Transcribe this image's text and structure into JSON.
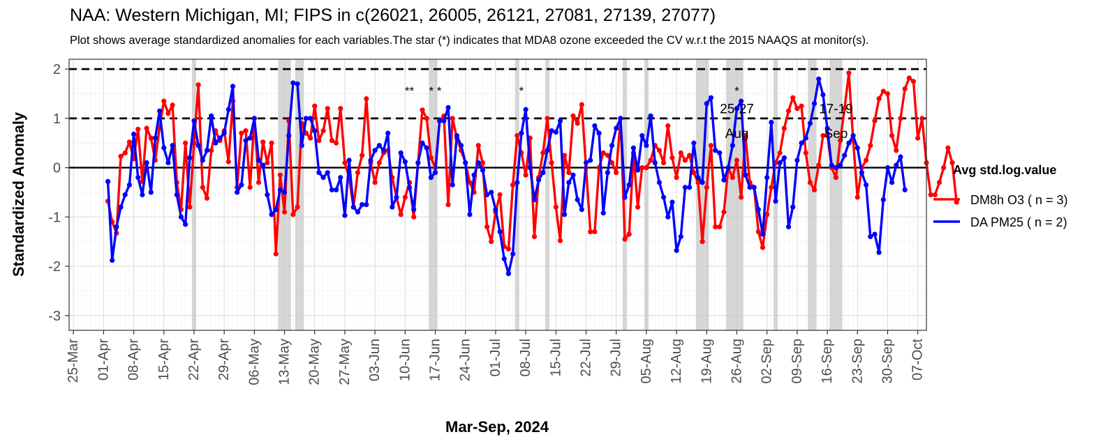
{
  "chart_data": {
    "type": "line",
    "title": "NAA: Western Michigan, MI; FIPS in c(26021, 26005, 26121, 27081, 27139, 27077)",
    "subtitle": "Plot shows average standardized anomalies for each variables.The star (*) indicates that MDA8 ozone exceeded the CV w.r.t the 2015 NAAQS at monitor(s).",
    "xlabel": "Mar-Sep, 2024",
    "ylabel": "Standardized Anomaly",
    "x_start_date": "2024-04-02",
    "xlim": [
      "2024-03-24",
      "2024-10-09"
    ],
    "ylim": [
      -3.3,
      2.2
    ],
    "x_ticks": [
      "25-Mar",
      "01-Apr",
      "08-Apr",
      "15-Apr",
      "22-Apr",
      "29-Apr",
      "06-May",
      "13-May",
      "20-May",
      "27-May",
      "03-Jun",
      "10-Jun",
      "17-Jun",
      "24-Jun",
      "01-Jul",
      "08-Jul",
      "15-Jul",
      "22-Jul",
      "29-Jul",
      "05-Aug",
      "12-Aug",
      "19-Aug",
      "26-Aug",
      "02-Sep",
      "09-Sep",
      "16-Sep",
      "23-Sep",
      "30-Sep",
      "07-Oct"
    ],
    "y_ticks": [
      "-3",
      "-2",
      "-1",
      "0",
      "1",
      "2"
    ],
    "grid": true,
    "legend": {
      "title": "Avg std.log.value",
      "position": "right"
    },
    "reference_lines": [
      {
        "y": 2,
        "style": "dashed"
      },
      {
        "y": 1,
        "style": "dashed"
      },
      {
        "y": 0,
        "style": "solid"
      }
    ],
    "shaded_days": [
      "2024-04-22",
      "2024-05-12",
      "2024-05-13",
      "2024-05-14",
      "2024-05-16",
      "2024-05-17",
      "2024-06-16",
      "2024-06-17",
      "2024-07-06",
      "2024-07-13",
      "2024-07-31",
      "2024-08-05",
      "2024-08-17",
      "2024-08-18",
      "2024-08-19",
      "2024-08-24",
      "2024-08-25",
      "2024-08-26",
      "2024-08-27",
      "2024-09-04",
      "2024-09-12",
      "2024-09-13",
      "2024-09-17",
      "2024-09-18",
      "2024-09-19"
    ],
    "stars": [
      {
        "date": "2024-06-11",
        "label": "**"
      },
      {
        "date": "2024-06-17",
        "label": "* *"
      },
      {
        "date": "2024-07-07",
        "label": "*"
      },
      {
        "date": "2024-08-26",
        "label": "*"
      }
    ],
    "annotations": [
      {
        "date": "2024-08-26",
        "lines": [
          "25-27",
          "Aug"
        ],
        "y": [
          1.2,
          0.7
        ]
      },
      {
        "date": "2024-09-18",
        "lines": [
          "17-19",
          "Sep"
        ],
        "y": [
          1.2,
          0.7
        ]
      }
    ],
    "series": [
      {
        "name": "DM8h O3 ( n = 3)",
        "color": "#ff0000",
        "values": [
          -0.68,
          -1.1,
          -1.33,
          0.23,
          0.3,
          0.52,
          0.18,
          0.78,
          -0.28,
          0.8,
          0.6,
          0.15,
          0.82,
          1.35,
          1.1,
          1.27,
          -0.3,
          -0.85,
          0.5,
          -0.8,
          0.5,
          1.68,
          -0.4,
          -0.62,
          0.35,
          0.75,
          0.55,
          0.75,
          0.12,
          1.35,
          -0.4,
          0.7,
          0.75,
          -0.4,
          1.0,
          -0.3,
          0.52,
          0.1,
          0.5,
          -1.75,
          -0.15,
          -0.9,
          0.95,
          -0.95,
          -0.8,
          0.9,
          0.7,
          0.6,
          1.25,
          0.55,
          0.75,
          1.2,
          0.55,
          0.5,
          1.2,
          0.1,
          -0.2,
          -0.8,
          -0.1,
          0.25,
          1.4,
          0.1,
          -0.3,
          0.1,
          0.3,
          0.35,
          -0.2,
          -0.6,
          -0.95,
          -0.6,
          -0.3,
          -1.0,
          0.1,
          1.17,
          1.0,
          0.2,
          0.0,
          0.95,
          1.05,
          -0.75,
          1.0,
          0.6,
          0.35,
          0.1,
          -0.3,
          -0.5,
          0.45,
          0.1,
          -1.2,
          -1.5,
          -0.9,
          -0.55,
          -1.6,
          -1.65,
          -0.35,
          0.65,
          0.3,
          -0.15,
          0.6,
          -1.4,
          -0.2,
          0.3,
          1.0,
          0.1,
          -0.8,
          -1.48,
          0.25,
          -0.1,
          1.05,
          0.9,
          1.28,
          0.0,
          -1.3,
          -1.3,
          0.0,
          0.3,
          0.25,
          0.1,
          -0.1,
          1.0,
          -1.45,
          -1.35,
          0.3,
          -0.8,
          0.0,
          0.0,
          0.15,
          0.45,
          0.35,
          0.1,
          0.85,
          0.2,
          -0.2,
          0.3,
          0.15,
          0.25,
          -0.1,
          -0.3,
          -1.5,
          -0.4,
          0.45,
          -1.2,
          -1.2,
          -0.9,
          0.0,
          -0.2,
          0.15,
          -0.6,
          0.65,
          -0.3,
          -0.4,
          -1.3,
          -1.62,
          -0.95,
          -0.4,
          0.1,
          0.3,
          0.8,
          1.15,
          1.42,
          1.2,
          1.25,
          0.3,
          -0.3,
          -0.45,
          0.05,
          0.65,
          0.68,
          0.0,
          -0.2,
          0.55,
          1.2,
          1.92,
          0.55,
          -0.6,
          0.0,
          0.15,
          0.45,
          0.95,
          1.4,
          1.55,
          1.5,
          0.65,
          0.35,
          1.0,
          1.6,
          1.82,
          1.75,
          0.6,
          1.0,
          0.1,
          -0.55,
          -0.55,
          -0.3,
          0.0,
          0.4,
          0.1,
          -0.7
        ]
      },
      {
        "name": "DA PM25 ( n = 2)",
        "color": "#0000ff",
        "values": [
          -0.28,
          -1.88,
          -1.2,
          -0.8,
          -0.55,
          -0.35,
          0.68,
          -0.2,
          -0.55,
          0.1,
          -0.5,
          0.6,
          1.15,
          0.4,
          0.1,
          0.45,
          -0.55,
          -1.0,
          -1.15,
          0.2,
          0.95,
          0.45,
          0.15,
          0.35,
          1.05,
          0.5,
          0.6,
          0.7,
          1.18,
          1.65,
          -0.5,
          -0.35,
          0.55,
          0.6,
          1.0,
          0.15,
          0.05,
          -0.55,
          -0.95,
          -0.85,
          -0.45,
          -0.5,
          0.65,
          1.72,
          1.7,
          0.45,
          1.0,
          1.0,
          0.75,
          -0.1,
          -0.2,
          -0.1,
          -0.45,
          -0.45,
          -0.2,
          -0.97,
          0.15,
          -0.8,
          -0.9,
          -0.75,
          -0.75,
          0.15,
          0.35,
          0.45,
          0.35,
          0.7,
          -0.8,
          -0.6,
          0.3,
          0.12,
          -0.4,
          -0.85,
          0.1,
          0.5,
          0.4,
          -0.2,
          -0.1,
          0.95,
          0.95,
          1.22,
          -0.35,
          0.65,
          0.45,
          0.1,
          -0.95,
          -0.15,
          0.1,
          -0.05,
          -0.55,
          -0.5,
          -0.85,
          -1.3,
          -1.85,
          -2.15,
          -1.75,
          -0.3,
          0.7,
          1.18,
          0.0,
          -0.65,
          -0.25,
          -0.1,
          0.35,
          0.75,
          0.72,
          0.95,
          -0.95,
          -0.3,
          -0.15,
          -0.65,
          -0.85,
          0.1,
          0.15,
          0.85,
          0.7,
          -0.92,
          -0.1,
          0.45,
          0.8,
          1.0,
          -0.6,
          -0.35,
          0.4,
          -0.05,
          0.65,
          0.45,
          1.05,
          0.1,
          -0.3,
          -0.6,
          -1.0,
          -0.7,
          -1.68,
          -1.4,
          -0.4,
          -0.4,
          0.5,
          -0.2,
          -0.3,
          1.3,
          1.42,
          0.35,
          0.3,
          -0.25,
          0.0,
          0.45,
          1.2,
          1.35,
          -0.15,
          -0.4,
          -0.4,
          -0.85,
          -1.35,
          -0.2,
          0.92,
          -0.68,
          0.1,
          0.2,
          -1.2,
          -0.8,
          0.15,
          0.5,
          0.6,
          0.9,
          1.3,
          1.8,
          1.48,
          0.8,
          0.05,
          0.0,
          0.05,
          0.25,
          0.5,
          0.65,
          0.4,
          -0.1,
          -0.35,
          -1.4,
          -1.35,
          -1.72,
          -0.65,
          0.0,
          -0.3,
          0.05,
          0.22,
          -0.45
        ]
      }
    ]
  }
}
